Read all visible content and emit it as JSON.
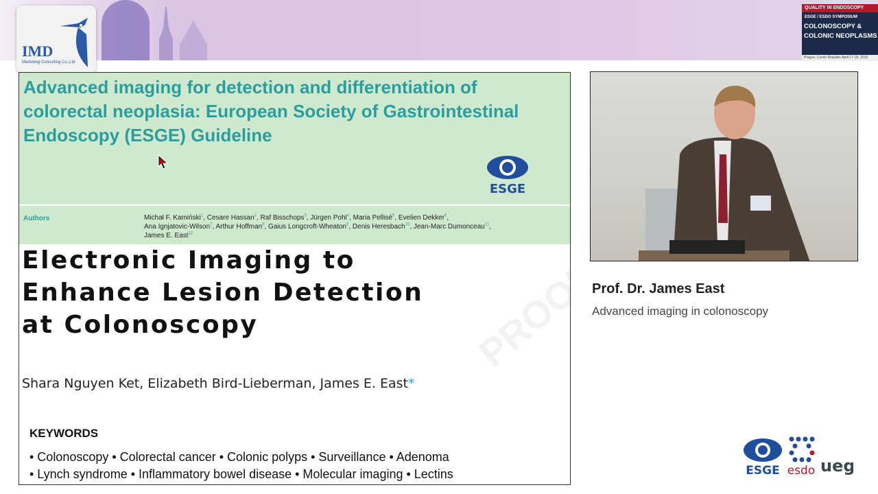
{
  "banner": {
    "imd_logo_text": "IMD",
    "imd_logo_sub": "Marketing Consulting Co.,Ltd",
    "symposium": {
      "tag": "QUALITY IN ENDOSCOPY",
      "event": "ESGE / ESDO SYMPOSIUM",
      "title_line1": "COLONOSCOPY &",
      "title_line2": "COLONIC NEOPLASMS",
      "place": "Prague, Czech Republic   April 17-18, 2015"
    }
  },
  "slide": {
    "guideline_title": "Advanced imaging for detection and differentiation of colorectal neoplasia: European Society of Gastrointestinal Endoscopy (ESGE) Guideline",
    "esge_logo_text": "ESGE",
    "authors_label": "Authors",
    "authors": [
      {
        "name": "Michał F. Kamiński",
        "sup": "1"
      },
      {
        "name": "Cesare Hassan",
        "sup": "2"
      },
      {
        "name": "Raf Bisschops",
        "sup": "3"
      },
      {
        "name": "Jürgen Pohl",
        "sup": "4"
      },
      {
        "name": "Maria Pellisé",
        "sup": "5"
      },
      {
        "name": "Evelien Dekker",
        "sup": "6"
      },
      {
        "name": "Ana Ignjatovic-Wilson",
        "sup": "7"
      },
      {
        "name": "Arthur Hoffman",
        "sup": "8"
      },
      {
        "name": "Gaius Longcroft-Wheaton",
        "sup": "9"
      },
      {
        "name": "Denis Heresbach",
        "sup": "10"
      },
      {
        "name": "Jean-Marc Dumonceau",
        "sup": "11"
      },
      {
        "name": "James E. East",
        "sup": "12"
      }
    ],
    "article_title_lines": [
      "Electronic Imaging to",
      "Enhance Lesion Detection",
      "at Colonoscopy"
    ],
    "byline": "Shara Nguyen Ket, Elizabeth Bird-Lieberman, James E. East",
    "byline_mark": "*",
    "watermark": "PROOF",
    "keywords_label": "KEYWORDS",
    "keywords_line1": "• Colonoscopy • Colorectal cancer • Colonic polyps • Surveillance • Adenoma",
    "keywords_line2": "• Lynch syndrome • Inflammatory bowel disease • Molecular imaging • Lectins"
  },
  "speaker": {
    "name": "Prof. Dr. James East",
    "topic": "Advanced imaging in colonoscopy"
  },
  "footer_logos": {
    "esge": "ESGE",
    "esdo": "esdo",
    "ueg": "ueg"
  },
  "colors": {
    "guideline_green": "#cfe9cf",
    "teal": "#2a9e9e",
    "esge_blue": "#1f4e9c",
    "esdo_red": "#b5182c"
  }
}
